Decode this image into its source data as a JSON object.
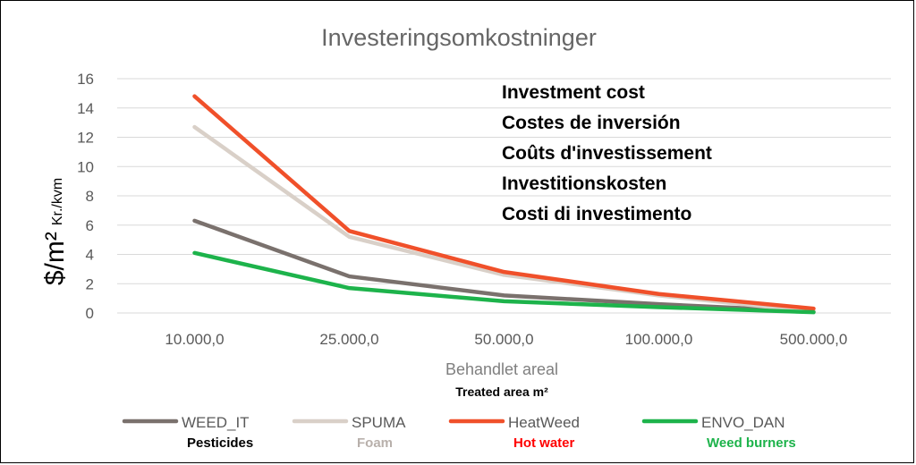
{
  "chart_data": {
    "type": "line",
    "title": "Investeringsomkostninger",
    "xlabel": "Behandlet areal",
    "xlabel_sub": "Treated area m²",
    "ylabel": "$/m²",
    "ylabel_sub": "Kr./kvm",
    "categories": [
      "10.000,0",
      "25.000,0",
      "50.000,0",
      "100.000,0",
      "500.000,0"
    ],
    "ylim": [
      0,
      16
    ],
    "yticks": [
      "0",
      "2",
      "4",
      "6",
      "8",
      "10",
      "12",
      "14",
      "16"
    ],
    "grid": true,
    "series": [
      {
        "name": "WEED_IT",
        "sublabel": "Pesticides",
        "color": "#7a716d",
        "subcolor": "#000000",
        "values": [
          6.3,
          2.5,
          1.2,
          0.6,
          0.1
        ]
      },
      {
        "name": "SPUMA",
        "sublabel": "Foam",
        "color": "#d9d0c8",
        "subcolor": "#b8b0ab",
        "values": [
          12.7,
          5.2,
          2.6,
          1.2,
          0.1
        ]
      },
      {
        "name": "HeatWeed",
        "sublabel": "Hot water",
        "color": "#f0502a",
        "subcolor": "#ff0000",
        "values": [
          14.8,
          5.6,
          2.8,
          1.3,
          0.3
        ]
      },
      {
        "name": "ENVO_DAN",
        "sublabel": "Weed burners",
        "color": "#1db34b",
        "subcolor": "#1db34b",
        "values": [
          4.1,
          1.7,
          0.8,
          0.4,
          0.05
        ]
      }
    ],
    "annotations": [
      "Investment cost",
      "Costes de inversión",
      "Coûts d'investissement",
      "Investitionskosten",
      "Costi di investimento"
    ],
    "legend_position": "bottom"
  }
}
